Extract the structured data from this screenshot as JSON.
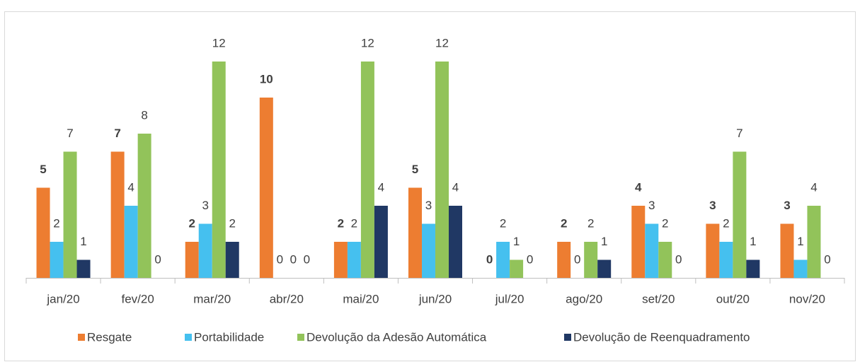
{
  "chart_data": {
    "type": "bar",
    "categories": [
      "jan/20",
      "fev/20",
      "mar/20",
      "abr/20",
      "mai/20",
      "jun/20",
      "jul/20",
      "ago/20",
      "set/20",
      "out/20",
      "nov/20"
    ],
    "series": [
      {
        "name": "Resgate",
        "color": "#ed7d31",
        "values": [
          5,
          7,
          2,
          10,
          2,
          5,
          0,
          2,
          4,
          3,
          3
        ]
      },
      {
        "name": "Portabilidade",
        "color": "#45c0ef",
        "values": [
          2,
          4,
          3,
          0,
          2,
          3,
          2,
          0,
          3,
          2,
          1
        ]
      },
      {
        "name": "Devolução da Adesão Automática",
        "color": "#92c35a",
        "values": [
          7,
          8,
          12,
          0,
          12,
          12,
          1,
          2,
          2,
          7,
          4
        ]
      },
      {
        "name": "Devolução de Reenquadramento",
        "color": "#203864",
        "values": [
          1,
          0,
          2,
          0,
          4,
          4,
          0,
          1,
          0,
          1,
          0
        ]
      }
    ],
    "ylim": [
      0,
      12
    ],
    "legend": "bottom"
  }
}
